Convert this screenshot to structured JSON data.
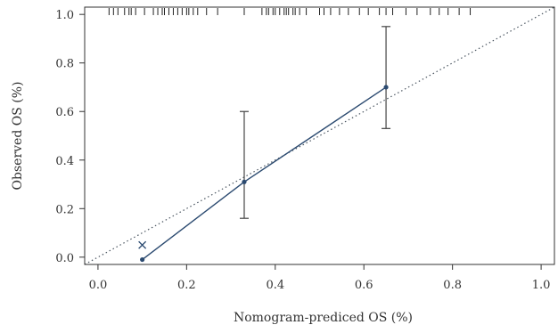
{
  "chart_data": {
    "type": "scatter",
    "xlabel": "Nomogram-prediced OS (%)",
    "ylabel": "Observed OS (%)",
    "xlim": [
      -0.03,
      1.03
    ],
    "ylim": [
      -0.03,
      1.03
    ],
    "x_ticks": [
      0.0,
      0.2,
      0.4,
      0.6,
      0.8,
      1.0
    ],
    "y_ticks": [
      0.0,
      0.2,
      0.4,
      0.6,
      0.8,
      1.0
    ],
    "x_tick_labels": [
      "0.0",
      "0.2",
      "0.4",
      "0.6",
      "0.8",
      "1.0"
    ],
    "y_tick_labels": [
      "0.0",
      "0.2",
      "0.4",
      "0.6",
      "0.8",
      "1.0"
    ],
    "reference_line": {
      "from": [
        -0.03,
        -0.03
      ],
      "to": [
        1.03,
        1.03
      ],
      "style": "dotted"
    },
    "calibration_series": {
      "points": [
        {
          "x": 0.1,
          "y": -0.01,
          "lower": null,
          "upper": null
        },
        {
          "x": 0.33,
          "y": 0.31,
          "lower": 0.16,
          "upper": 0.6
        },
        {
          "x": 0.65,
          "y": 0.7,
          "lower": 0.53,
          "upper": 0.95
        }
      ]
    },
    "bias_corrected_marker": {
      "x": 0.1,
      "y": 0.05,
      "symbol": "x"
    },
    "rug_x": [
      0.025,
      0.035,
      0.045,
      0.06,
      0.07,
      0.075,
      0.085,
      0.105,
      0.125,
      0.135,
      0.145,
      0.15,
      0.16,
      0.17,
      0.18,
      0.19,
      0.2,
      0.205,
      0.215,
      0.225,
      0.245,
      0.27,
      0.33,
      0.37,
      0.38,
      0.385,
      0.395,
      0.4,
      0.41,
      0.42,
      0.425,
      0.43,
      0.44,
      0.445,
      0.455,
      0.47,
      0.5,
      0.51,
      0.525,
      0.545,
      0.565,
      0.59,
      0.61,
      0.635,
      0.65,
      0.665,
      0.695,
      0.72,
      0.75,
      0.77,
      0.79,
      0.815,
      0.84
    ],
    "grid": false,
    "colors": {
      "series": "#2b4a70",
      "reference": "#4a5560",
      "axis": "#333333",
      "errorbar": "#444444"
    }
  }
}
